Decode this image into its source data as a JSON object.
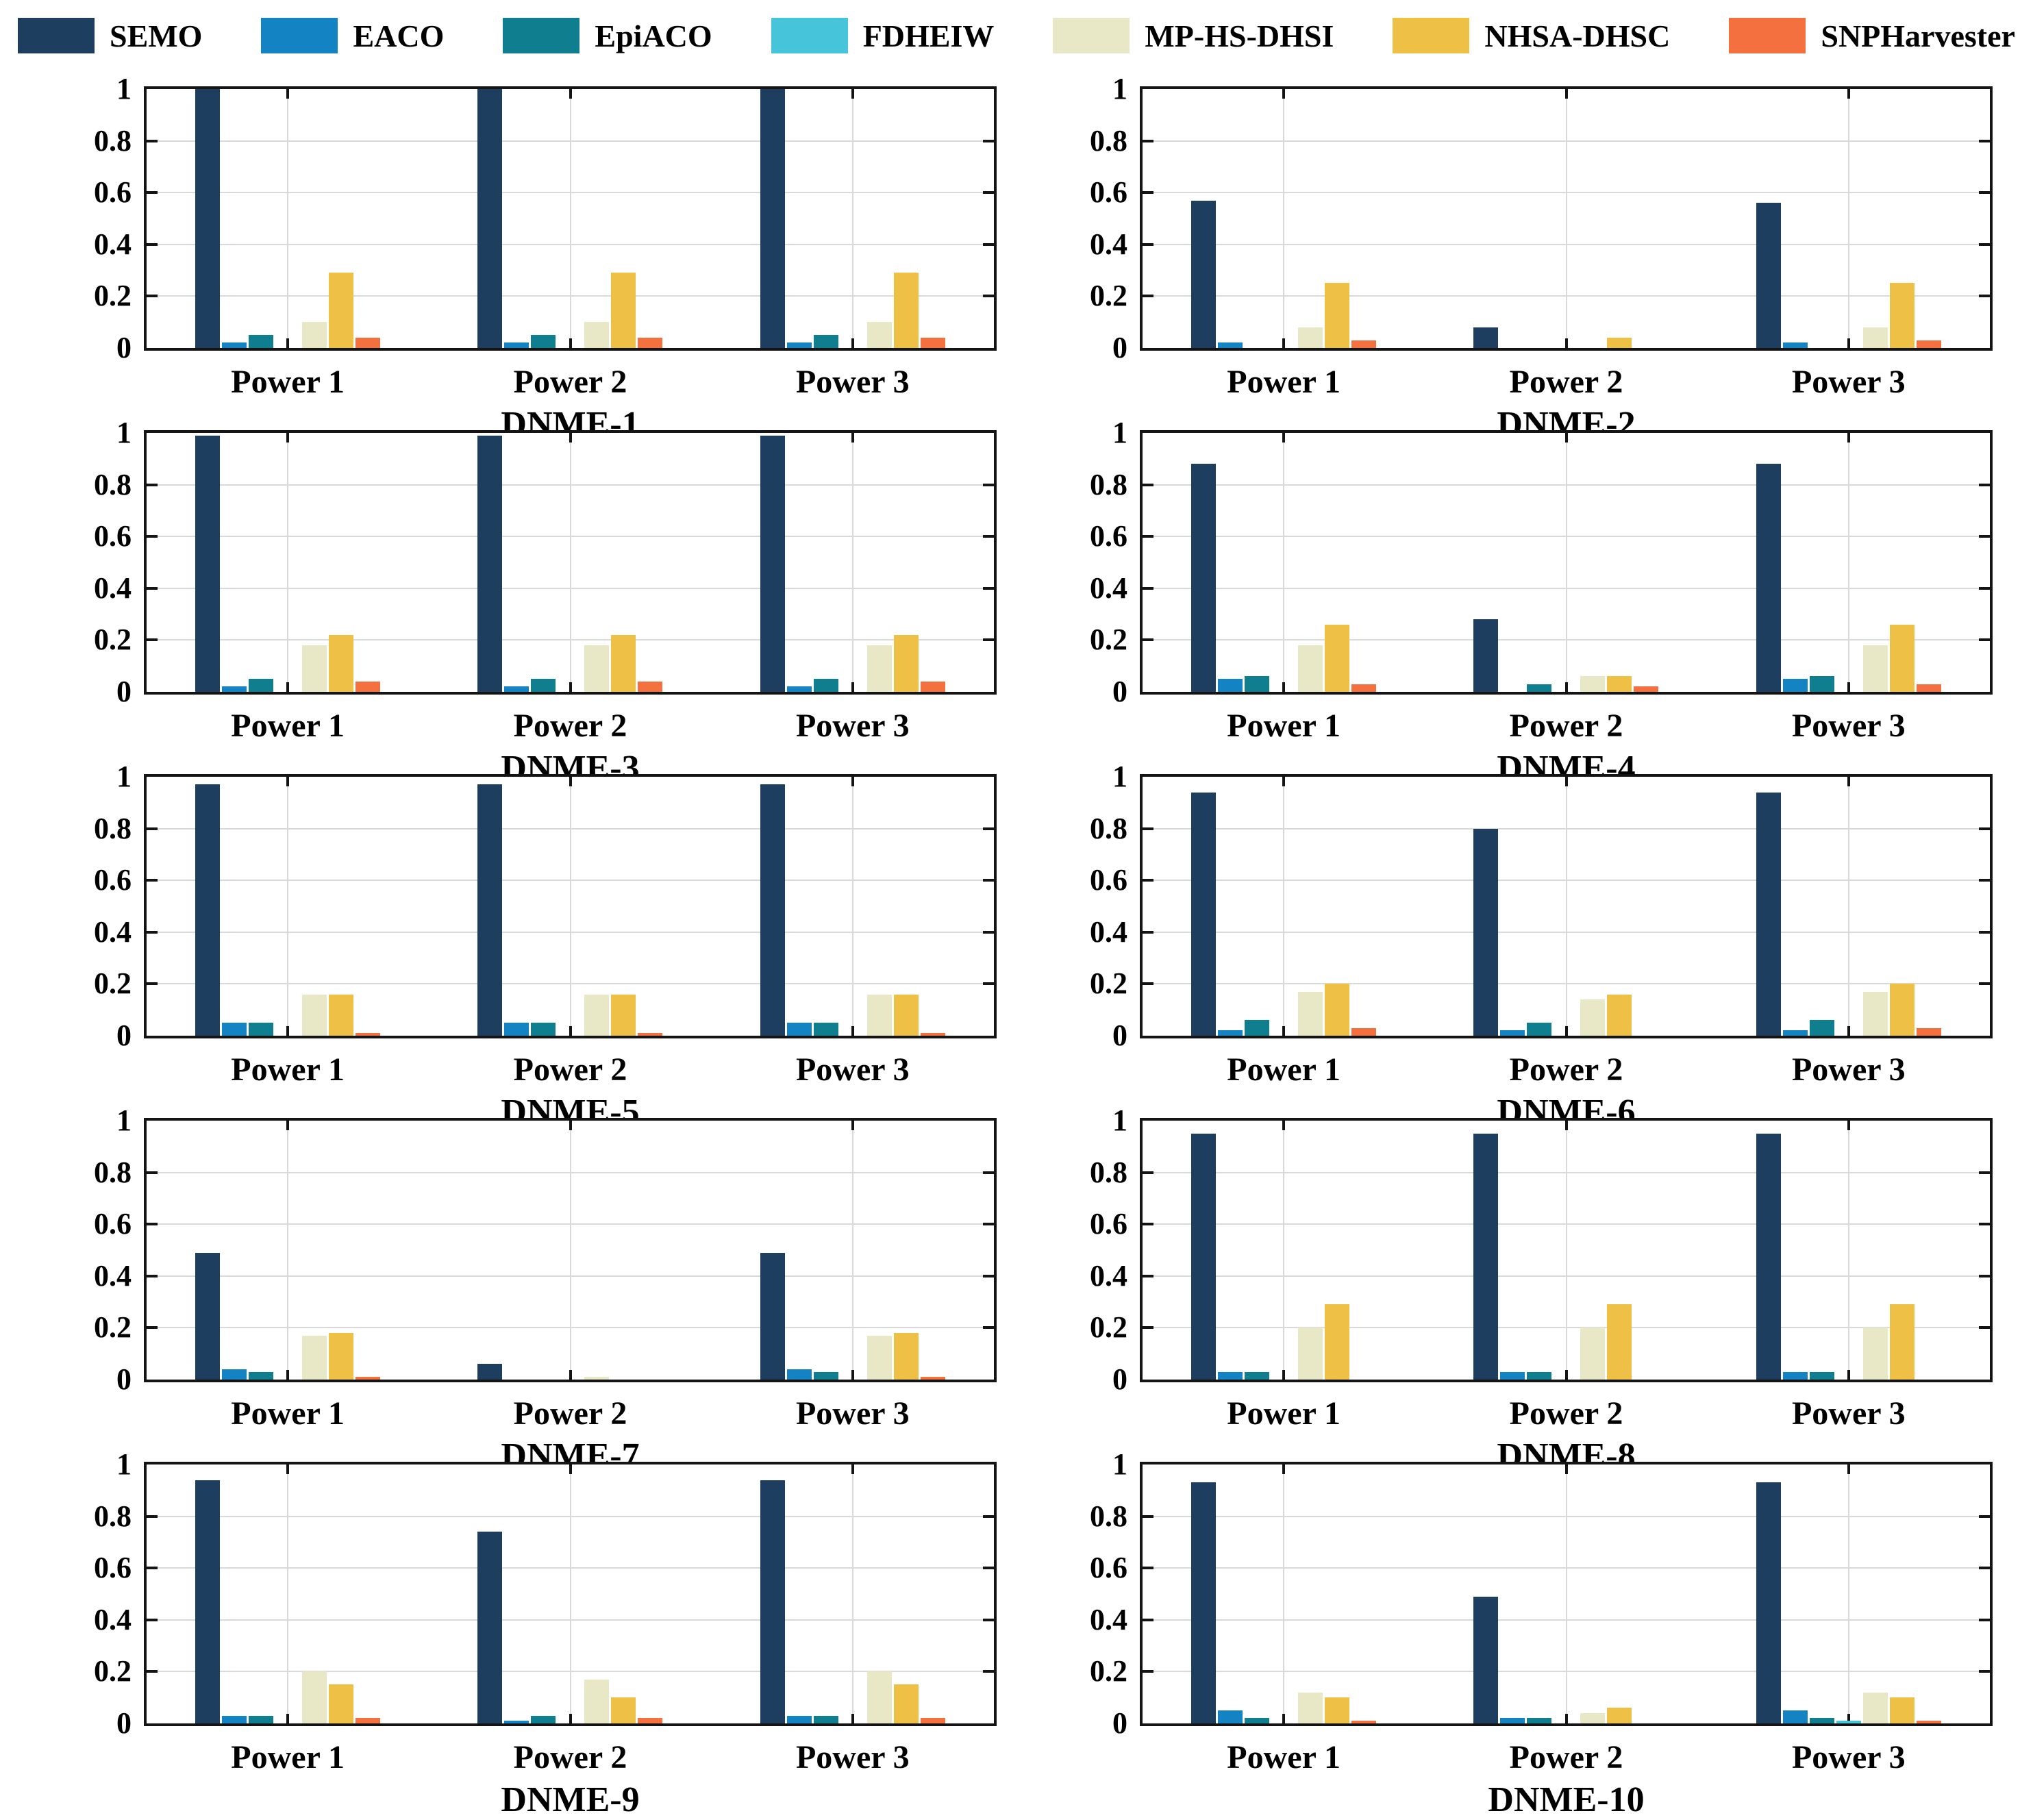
{
  "figure": {
    "type": "grouped-bar-chart-grid",
    "rows": 5,
    "cols": 2,
    "background": "#ffffff",
    "axis_color": "#141414",
    "gridline_color": "#d9d9d9"
  },
  "legend": {
    "position": "top",
    "entries": [
      {
        "label": "SEMO",
        "color": "#1d3e5f"
      },
      {
        "label": "EACO",
        "color": "#1483c4"
      },
      {
        "label": "EpiACO",
        "color": "#0f7f90"
      },
      {
        "label": "FDHEIW",
        "color": "#45c4da"
      },
      {
        "label": "MP-HS-DHSI",
        "color": "#e8e8c6"
      },
      {
        "label": "NHSA-DHSC",
        "color": "#eec046"
      },
      {
        "label": "SNPHarvester",
        "color": "#f4703f"
      }
    ]
  },
  "axis": {
    "y_ticks": [
      1,
      0.8,
      0.6,
      0.4,
      0.2,
      0
    ],
    "y_tick_labels": [
      "1",
      "0.8",
      "0.6",
      "0.4",
      "0.2",
      "0"
    ],
    "ylim": [
      0,
      1
    ],
    "grid": "on"
  },
  "chart_data": [
    {
      "type": "bar",
      "title": "DNME-1",
      "categories": [
        "Power 1",
        "Power 2",
        "Power 3"
      ],
      "ylim": [
        0,
        1
      ],
      "series": [
        {
          "name": "SEMO",
          "values": [
            1.0,
            1.0,
            1.0
          ]
        },
        {
          "name": "EACO",
          "values": [
            0.02,
            0.02,
            0.02
          ]
        },
        {
          "name": "EpiACO",
          "values": [
            0.05,
            0.05,
            0.05
          ]
        },
        {
          "name": "FDHEIW",
          "values": [
            0,
            0,
            0
          ]
        },
        {
          "name": "MP-HS-DHSI",
          "values": [
            0.1,
            0.1,
            0.1
          ]
        },
        {
          "name": "NHSA-DHSC",
          "values": [
            0.29,
            0.29,
            0.29
          ]
        },
        {
          "name": "SNPHarvester",
          "values": [
            0.04,
            0.04,
            0.04
          ]
        }
      ]
    },
    {
      "type": "bar",
      "title": "DNME-2",
      "categories": [
        "Power 1",
        "Power 2",
        "Power 3"
      ],
      "ylim": [
        0,
        1
      ],
      "series": [
        {
          "name": "SEMO",
          "values": [
            0.57,
            0.08,
            0.56
          ]
        },
        {
          "name": "EACO",
          "values": [
            0.02,
            0,
            0.02
          ]
        },
        {
          "name": "EpiACO",
          "values": [
            0,
            0,
            0
          ]
        },
        {
          "name": "FDHEIW",
          "values": [
            0,
            0,
            0
          ]
        },
        {
          "name": "MP-HS-DHSI",
          "values": [
            0.08,
            0,
            0.08
          ]
        },
        {
          "name": "NHSA-DHSC",
          "values": [
            0.25,
            0.04,
            0.25
          ]
        },
        {
          "name": "SNPHarvester",
          "values": [
            0.03,
            0,
            0.03
          ]
        }
      ]
    },
    {
      "type": "bar",
      "title": "DNME-3",
      "categories": [
        "Power 1",
        "Power 2",
        "Power 3"
      ],
      "ylim": [
        0,
        1
      ],
      "series": [
        {
          "name": "SEMO",
          "values": [
            0.99,
            0.99,
            0.99
          ]
        },
        {
          "name": "EACO",
          "values": [
            0.02,
            0.02,
            0.02
          ]
        },
        {
          "name": "EpiACO",
          "values": [
            0.05,
            0.05,
            0.05
          ]
        },
        {
          "name": "FDHEIW",
          "values": [
            0,
            0,
            0
          ]
        },
        {
          "name": "MP-HS-DHSI",
          "values": [
            0.18,
            0.18,
            0.18
          ]
        },
        {
          "name": "NHSA-DHSC",
          "values": [
            0.22,
            0.22,
            0.22
          ]
        },
        {
          "name": "SNPHarvester",
          "values": [
            0.04,
            0.04,
            0.04
          ]
        }
      ]
    },
    {
      "type": "bar",
      "title": "DNME-4",
      "categories": [
        "Power 1",
        "Power 2",
        "Power 3"
      ],
      "ylim": [
        0,
        1
      ],
      "series": [
        {
          "name": "SEMO",
          "values": [
            0.88,
            0.28,
            0.88
          ]
        },
        {
          "name": "EACO",
          "values": [
            0.05,
            0,
            0.05
          ]
        },
        {
          "name": "EpiACO",
          "values": [
            0.06,
            0.03,
            0.06
          ]
        },
        {
          "name": "FDHEIW",
          "values": [
            0,
            0,
            0
          ]
        },
        {
          "name": "MP-HS-DHSI",
          "values": [
            0.18,
            0.06,
            0.18
          ]
        },
        {
          "name": "NHSA-DHSC",
          "values": [
            0.26,
            0.06,
            0.26
          ]
        },
        {
          "name": "SNPHarvester",
          "values": [
            0.03,
            0.02,
            0.03
          ]
        }
      ]
    },
    {
      "type": "bar",
      "title": "DNME-5",
      "categories": [
        "Power 1",
        "Power 2",
        "Power 3"
      ],
      "ylim": [
        0,
        1
      ],
      "series": [
        {
          "name": "SEMO",
          "values": [
            0.97,
            0.97,
            0.97
          ]
        },
        {
          "name": "EACO",
          "values": [
            0.05,
            0.05,
            0.05
          ]
        },
        {
          "name": "EpiACO",
          "values": [
            0.05,
            0.05,
            0.05
          ]
        },
        {
          "name": "FDHEIW",
          "values": [
            0,
            0,
            0
          ]
        },
        {
          "name": "MP-HS-DHSI",
          "values": [
            0.16,
            0.16,
            0.16
          ]
        },
        {
          "name": "NHSA-DHSC",
          "values": [
            0.16,
            0.16,
            0.16
          ]
        },
        {
          "name": "SNPHarvester",
          "values": [
            0.01,
            0.01,
            0.01
          ]
        }
      ]
    },
    {
      "type": "bar",
      "title": "DNME-6",
      "categories": [
        "Power 1",
        "Power 2",
        "Power 3"
      ],
      "ylim": [
        0,
        1
      ],
      "series": [
        {
          "name": "SEMO",
          "values": [
            0.94,
            0.8,
            0.94
          ]
        },
        {
          "name": "EACO",
          "values": [
            0.02,
            0.02,
            0.02
          ]
        },
        {
          "name": "EpiACO",
          "values": [
            0.06,
            0.05,
            0.06
          ]
        },
        {
          "name": "FDHEIW",
          "values": [
            0,
            0,
            0
          ]
        },
        {
          "name": "MP-HS-DHSI",
          "values": [
            0.17,
            0.14,
            0.17
          ]
        },
        {
          "name": "NHSA-DHSC",
          "values": [
            0.2,
            0.16,
            0.2
          ]
        },
        {
          "name": "SNPHarvester",
          "values": [
            0.03,
            0,
            0.03
          ]
        }
      ]
    },
    {
      "type": "bar",
      "title": "DNME-7",
      "categories": [
        "Power 1",
        "Power 2",
        "Power 3"
      ],
      "ylim": [
        0,
        1
      ],
      "series": [
        {
          "name": "SEMO",
          "values": [
            0.49,
            0.06,
            0.49
          ]
        },
        {
          "name": "EACO",
          "values": [
            0.04,
            0,
            0.04
          ]
        },
        {
          "name": "EpiACO",
          "values": [
            0.03,
            0,
            0.03
          ]
        },
        {
          "name": "FDHEIW",
          "values": [
            0,
            0,
            0
          ]
        },
        {
          "name": "MP-HS-DHSI",
          "values": [
            0.17,
            0.01,
            0.17
          ]
        },
        {
          "name": "NHSA-DHSC",
          "values": [
            0.18,
            0,
            0.18
          ]
        },
        {
          "name": "SNPHarvester",
          "values": [
            0.01,
            0,
            0.01
          ]
        }
      ]
    },
    {
      "type": "bar",
      "title": "DNME-8",
      "categories": [
        "Power 1",
        "Power 2",
        "Power 3"
      ],
      "ylim": [
        0,
        1
      ],
      "series": [
        {
          "name": "SEMO",
          "values": [
            0.95,
            0.95,
            0.95
          ]
        },
        {
          "name": "EACO",
          "values": [
            0.03,
            0.03,
            0.03
          ]
        },
        {
          "name": "EpiACO",
          "values": [
            0.03,
            0.03,
            0.03
          ]
        },
        {
          "name": "FDHEIW",
          "values": [
            0,
            0,
            0
          ]
        },
        {
          "name": "MP-HS-DHSI",
          "values": [
            0.2,
            0.2,
            0.2
          ]
        },
        {
          "name": "NHSA-DHSC",
          "values": [
            0.29,
            0.29,
            0.29
          ]
        },
        {
          "name": "SNPHarvester",
          "values": [
            0,
            0,
            0
          ]
        }
      ]
    },
    {
      "type": "bar",
      "title": "DNME-9",
      "categories": [
        "Power 1",
        "Power 2",
        "Power 3"
      ],
      "ylim": [
        0,
        1
      ],
      "series": [
        {
          "name": "SEMO",
          "values": [
            0.94,
            0.74,
            0.94
          ]
        },
        {
          "name": "EACO",
          "values": [
            0.03,
            0.01,
            0.03
          ]
        },
        {
          "name": "EpiACO",
          "values": [
            0.03,
            0.03,
            0.03
          ]
        },
        {
          "name": "FDHEIW",
          "values": [
            0,
            0,
            0
          ]
        },
        {
          "name": "MP-HS-DHSI",
          "values": [
            0.2,
            0.17,
            0.2
          ]
        },
        {
          "name": "NHSA-DHSC",
          "values": [
            0.15,
            0.1,
            0.15
          ]
        },
        {
          "name": "SNPHarvester",
          "values": [
            0.02,
            0.02,
            0.02
          ]
        }
      ]
    },
    {
      "type": "bar",
      "title": "DNME-10",
      "categories": [
        "Power 1",
        "Power 2",
        "Power 3"
      ],
      "ylim": [
        0,
        1
      ],
      "series": [
        {
          "name": "SEMO",
          "values": [
            0.93,
            0.49,
            0.93
          ]
        },
        {
          "name": "EACO",
          "values": [
            0.05,
            0.02,
            0.05
          ]
        },
        {
          "name": "EpiACO",
          "values": [
            0.02,
            0.02,
            0.02
          ]
        },
        {
          "name": "FDHEIW",
          "values": [
            0,
            0,
            0.01
          ]
        },
        {
          "name": "MP-HS-DHSI",
          "values": [
            0.12,
            0.04,
            0.12
          ]
        },
        {
          "name": "NHSA-DHSC",
          "values": [
            0.1,
            0.06,
            0.1
          ]
        },
        {
          "name": "SNPHarvester",
          "values": [
            0.01,
            0,
            0.01
          ]
        }
      ]
    }
  ]
}
